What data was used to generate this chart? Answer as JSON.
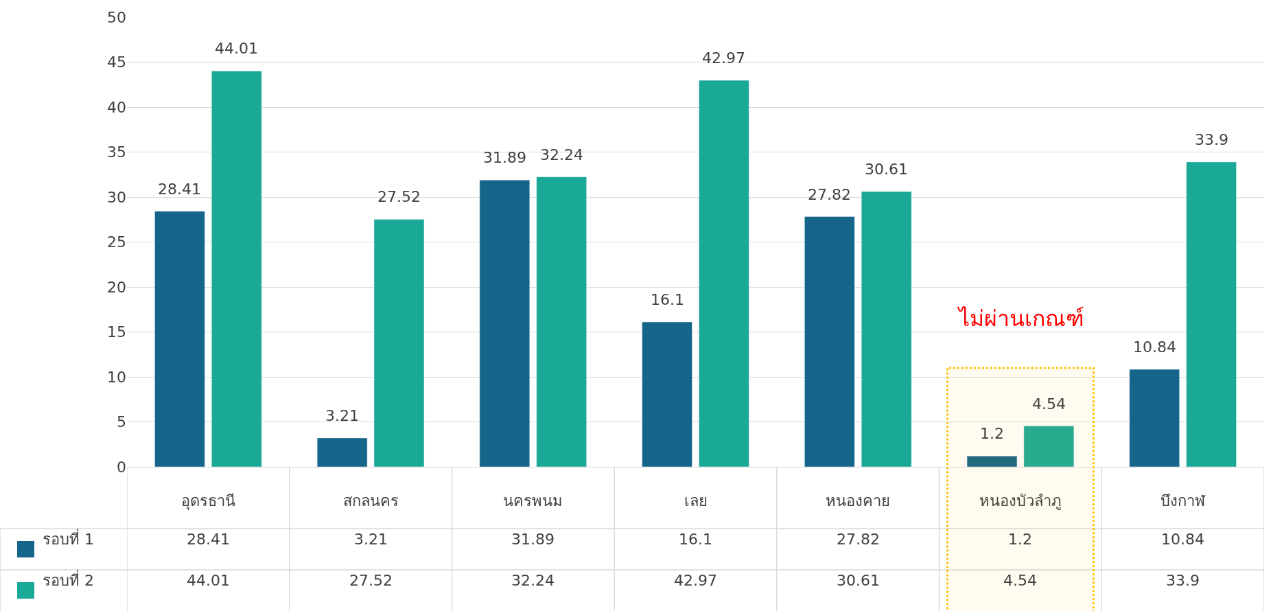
{
  "chart_data": {
    "type": "bar",
    "categories": [
      "อุดรธานี",
      "สกลนคร",
      "นครพนม",
      "เลย",
      "หนองคาย",
      "หนองบัวลำภู",
      "บึงกาฬ"
    ],
    "series": [
      {
        "name": "รอบที่ 1",
        "color": "#156489",
        "values": [
          28.41,
          3.21,
          31.89,
          16.1,
          27.82,
          1.2,
          10.84
        ]
      },
      {
        "name": "รอบที่ 2",
        "color": "#1aa996",
        "values": [
          44.01,
          27.52,
          32.24,
          42.97,
          30.61,
          4.54,
          33.9
        ]
      }
    ],
    "ylim": [
      0,
      50
    ],
    "yticks": [
      0,
      5,
      10,
      15,
      20,
      25,
      30,
      35,
      40,
      45,
      50
    ],
    "grid": "y",
    "legend": "bottom left",
    "data_labels": true,
    "bands": [
      {
        "axis": "x",
        "from": "หนองบัวลำภู",
        "to": "หนองบัวลำภู",
        "label": "ไม่ผ่านเกณฑ์",
        "color": "#ffc000"
      }
    ],
    "annotations": [
      "28.41",
      "3.21",
      "31.89",
      "16.1",
      "27.82",
      "1.2",
      "10.84",
      "44.01",
      "27.52",
      "32.24",
      "42.97",
      "30.61",
      "4.54",
      "33.9"
    ]
  }
}
